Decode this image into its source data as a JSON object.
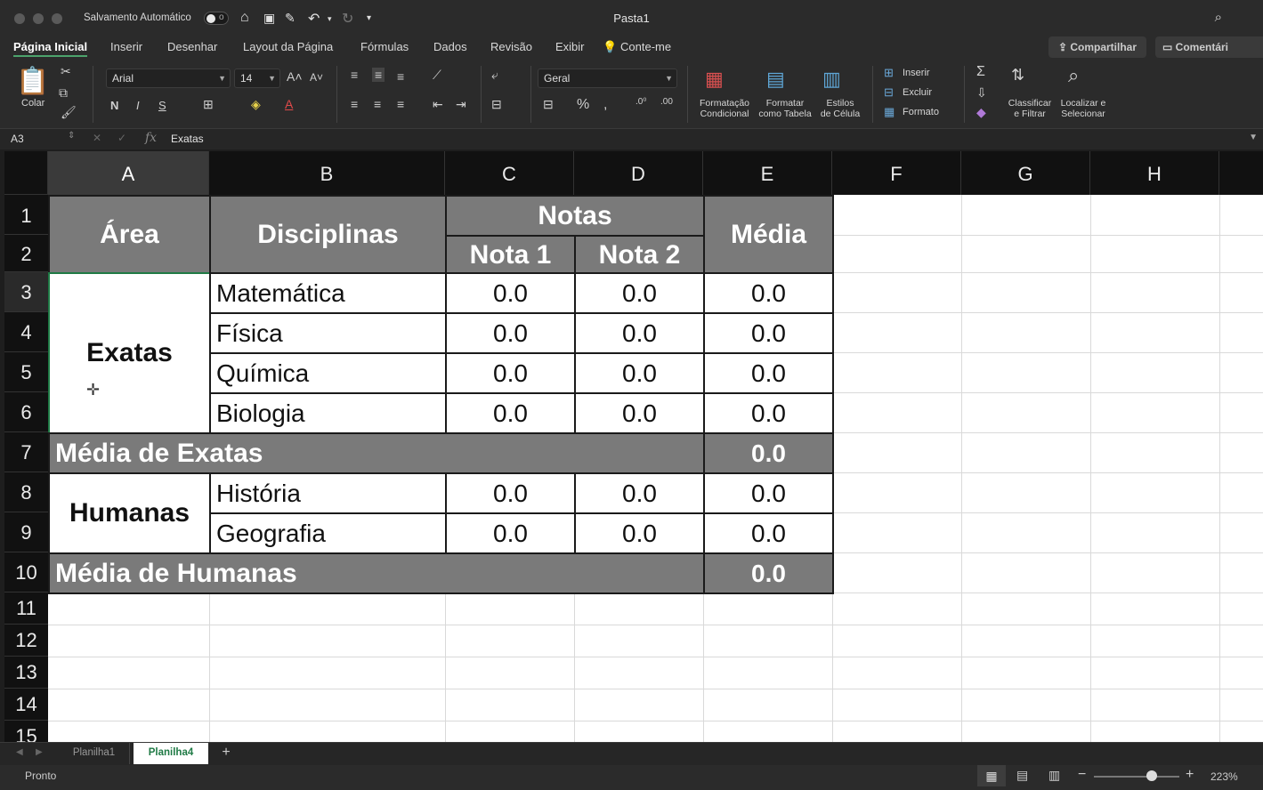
{
  "titlebar": {
    "autosave_label": "Salvamento Automático",
    "autosave_state": "o",
    "doc_title": "Pasta1"
  },
  "tabs": [
    "Página Inicial",
    "Inserir",
    "Desenhar",
    "Layout da Página",
    "Fórmulas",
    "Dados",
    "Revisão",
    "Exibir",
    "Conte-me"
  ],
  "active_tab": "Página Inicial",
  "share_label": "Compartilhar",
  "comments_label": "Comentári",
  "ribbon": {
    "paste_label": "Colar",
    "font_name": "Arial",
    "font_size": "14",
    "bold": "N",
    "italic": "I",
    "underline": "S",
    "number_format": "Geral",
    "cond_format": [
      "Formatação",
      "Condicional"
    ],
    "format_table": [
      "Formatar",
      "como Tabela"
    ],
    "cell_styles": [
      "Estilos",
      "de Célula"
    ],
    "insert": "Inserir",
    "delete": "Excluir",
    "format": "Formato",
    "sort_filter": [
      "Classificar",
      "e Filtrar"
    ],
    "find_select": [
      "Localizar e",
      "Selecionar"
    ]
  },
  "formula_bar": {
    "name_box": "A3",
    "fx": "fx",
    "value": "Exatas"
  },
  "columns": [
    "A",
    "B",
    "C",
    "D",
    "E",
    "F",
    "G",
    "H"
  ],
  "rows": [
    "1",
    "2",
    "3",
    "4",
    "5",
    "6",
    "7",
    "8",
    "9",
    "10",
    "11",
    "12",
    "13",
    "14",
    "15"
  ],
  "table": {
    "h_area": "Área",
    "h_disc": "Disciplinas",
    "h_notas": "Notas",
    "h_nota1": "Nota 1",
    "h_nota2": "Nota 2",
    "h_media": "Média",
    "exatas": "Exatas",
    "humanas": "Humanas",
    "exatas_rows": [
      {
        "disc": "Matemática",
        "n1": "0.0",
        "n2": "0.0",
        "m": "0.0"
      },
      {
        "disc": "Física",
        "n1": "0.0",
        "n2": "0.0",
        "m": "0.0"
      },
      {
        "disc": "Química",
        "n1": "0.0",
        "n2": "0.0",
        "m": "0.0"
      },
      {
        "disc": "Biologia",
        "n1": "0.0",
        "n2": "0.0",
        "m": "0.0"
      }
    ],
    "media_exatas_label": "Média de Exatas",
    "media_exatas_value": "0.0",
    "humanas_rows": [
      {
        "disc": "História",
        "n1": "0.0",
        "n2": "0.0",
        "m": "0.0"
      },
      {
        "disc": "Geografia",
        "n1": "0.0",
        "n2": "0.0",
        "m": "0.0"
      }
    ],
    "media_humanas_label": "Média de Humanas",
    "media_humanas_value": "0.0"
  },
  "sheets": [
    "Planilha1",
    "Planilha4"
  ],
  "active_sheet": "Planilha4",
  "status": {
    "ready": "Pronto",
    "zoom": "223%"
  },
  "colors": {
    "header_gray": "#7a7a7a",
    "active_green": "#4ca36c"
  }
}
